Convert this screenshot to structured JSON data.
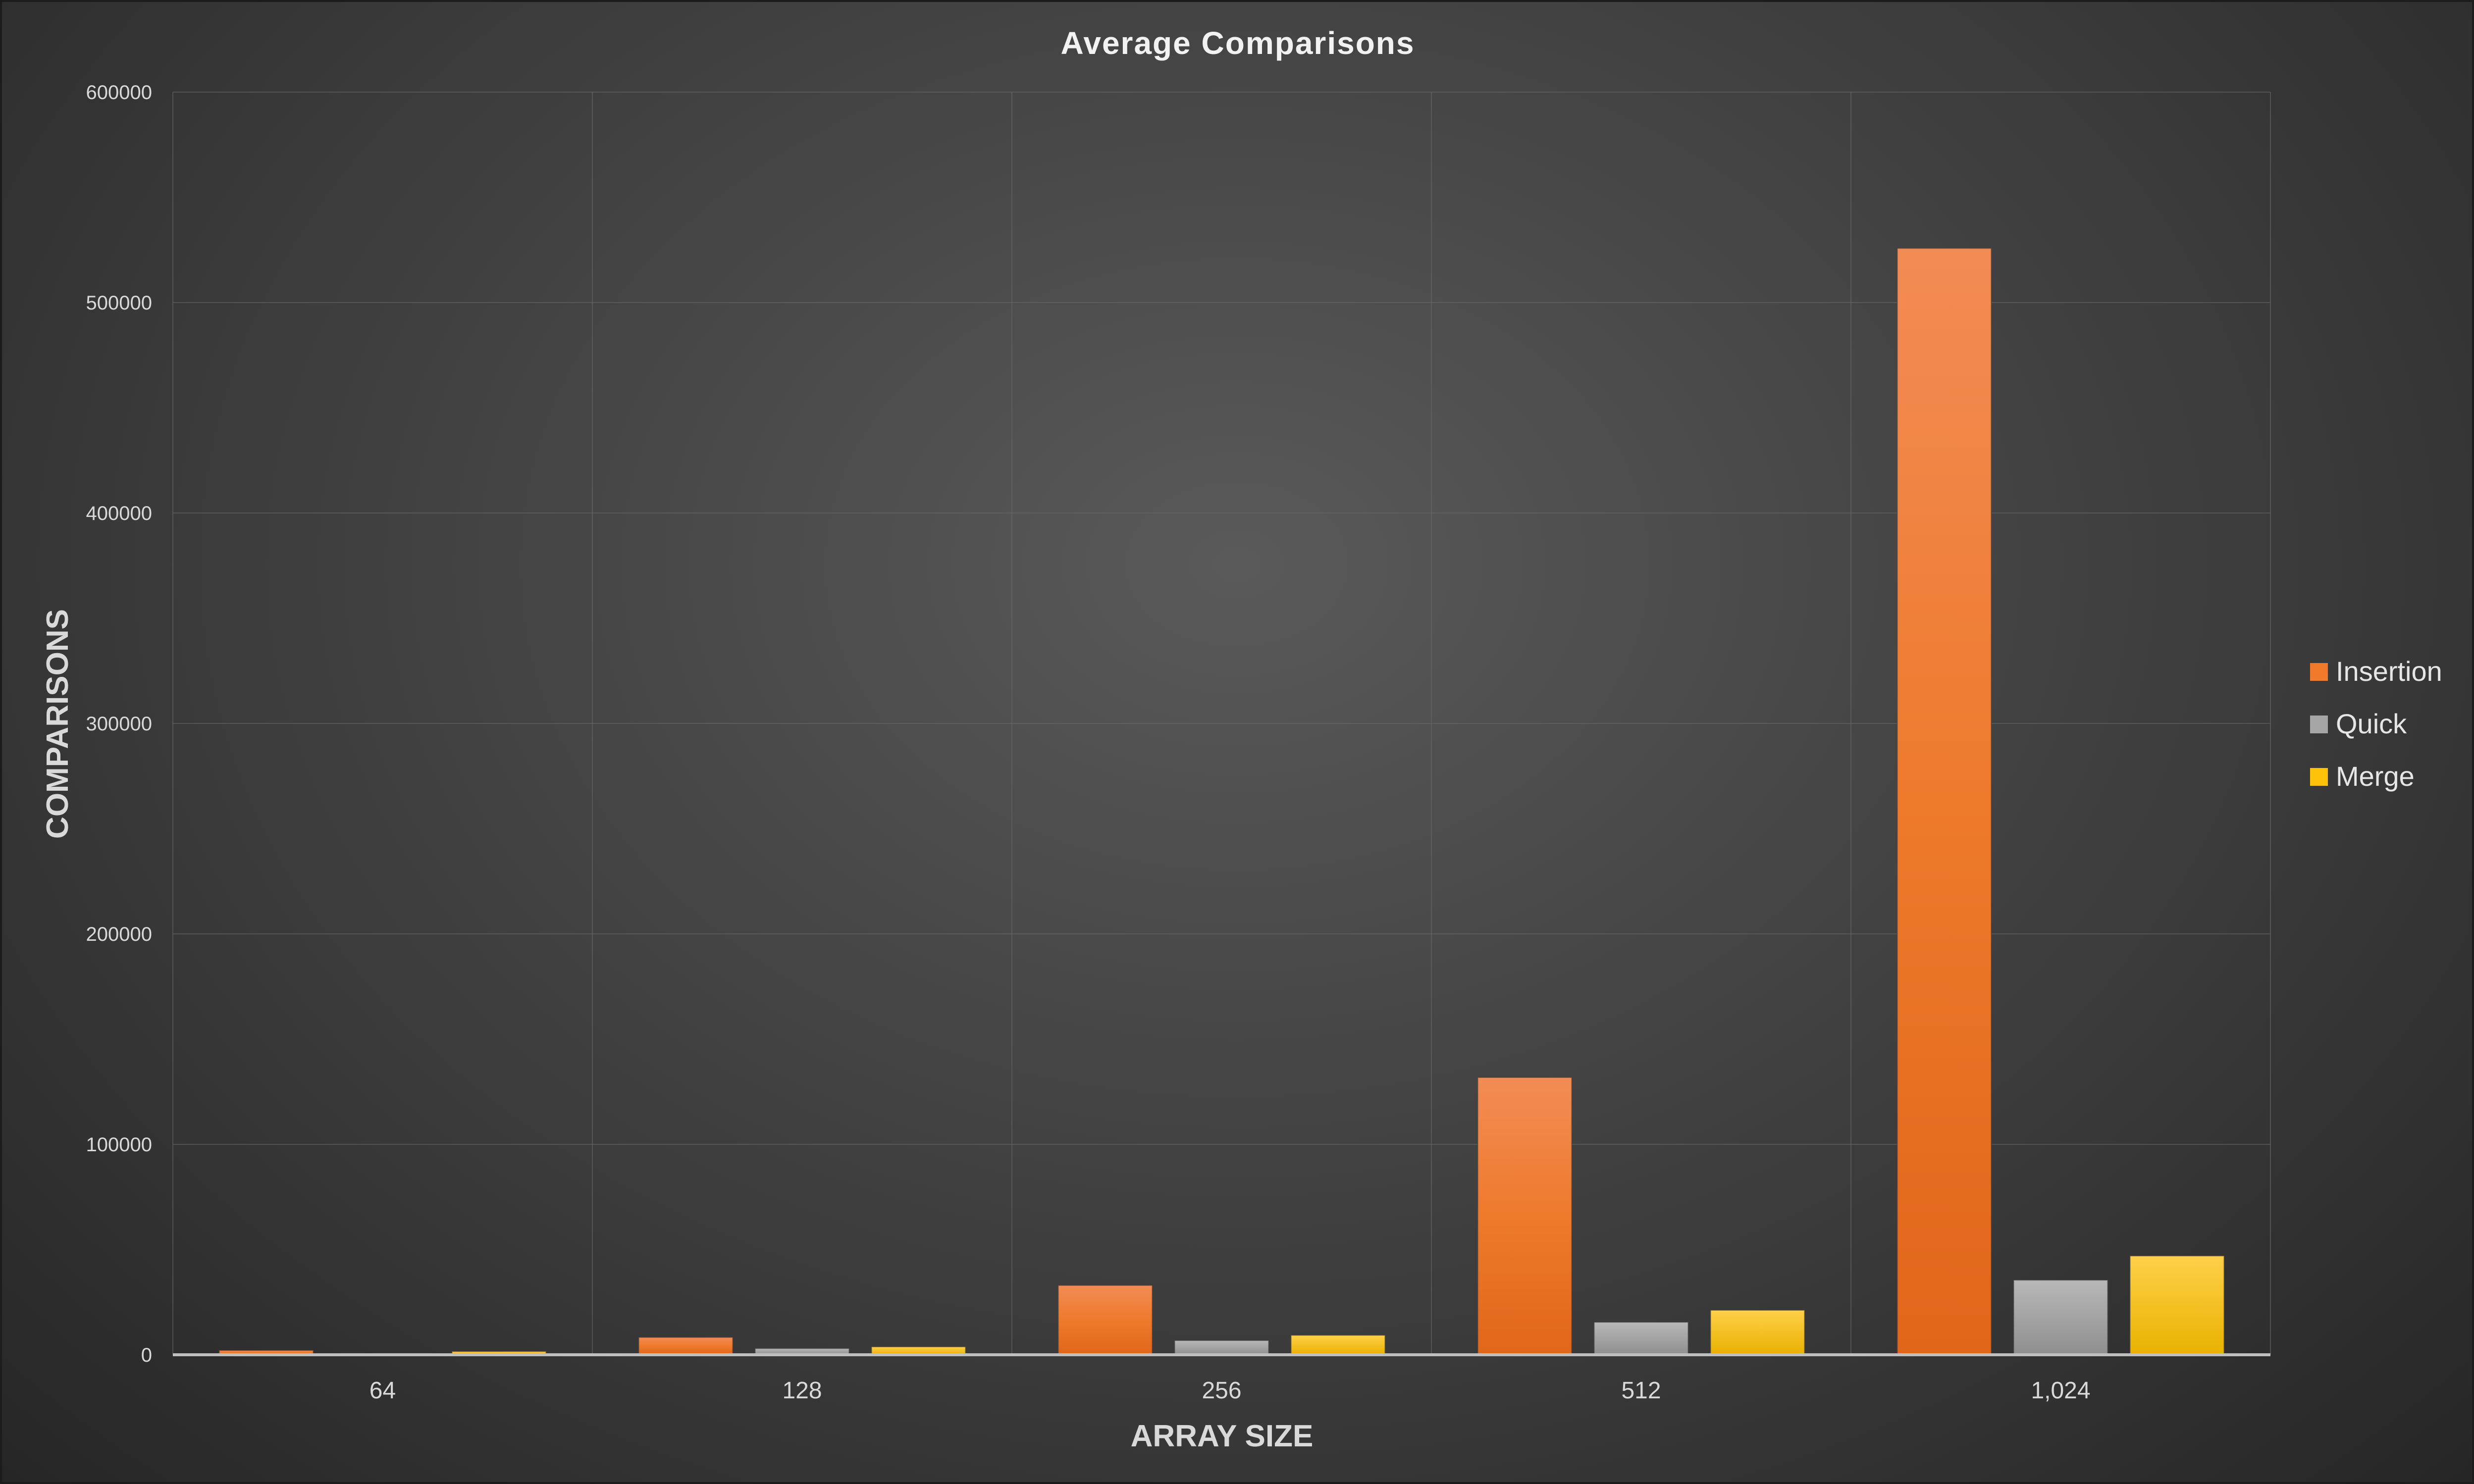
{
  "chart_data": {
    "type": "bar",
    "title": "Average Comparisons",
    "xlabel": "ARRAY SIZE",
    "ylabel": "COMPARISONS",
    "categories": [
      "64",
      "128",
      "256",
      "512",
      "1,024"
    ],
    "series": [
      {
        "name": "Insertion",
        "color": "#f07a2a",
        "values": [
          2100,
          8300,
          33000,
          131800,
          525800
        ]
      },
      {
        "name": "Quick",
        "color": "#a6a6a6",
        "values": [
          600,
          3000,
          6800,
          15500,
          35500
        ]
      },
      {
        "name": "Merge",
        "color": "#ffc20a",
        "values": [
          1600,
          3800,
          9300,
          21200,
          47000
        ]
      }
    ],
    "ylim": [
      0,
      600000
    ],
    "yticks": [
      "0",
      "100000",
      "200000",
      "300000",
      "400000",
      "500000",
      "600000"
    ],
    "grid": true,
    "legend_position": "right"
  }
}
